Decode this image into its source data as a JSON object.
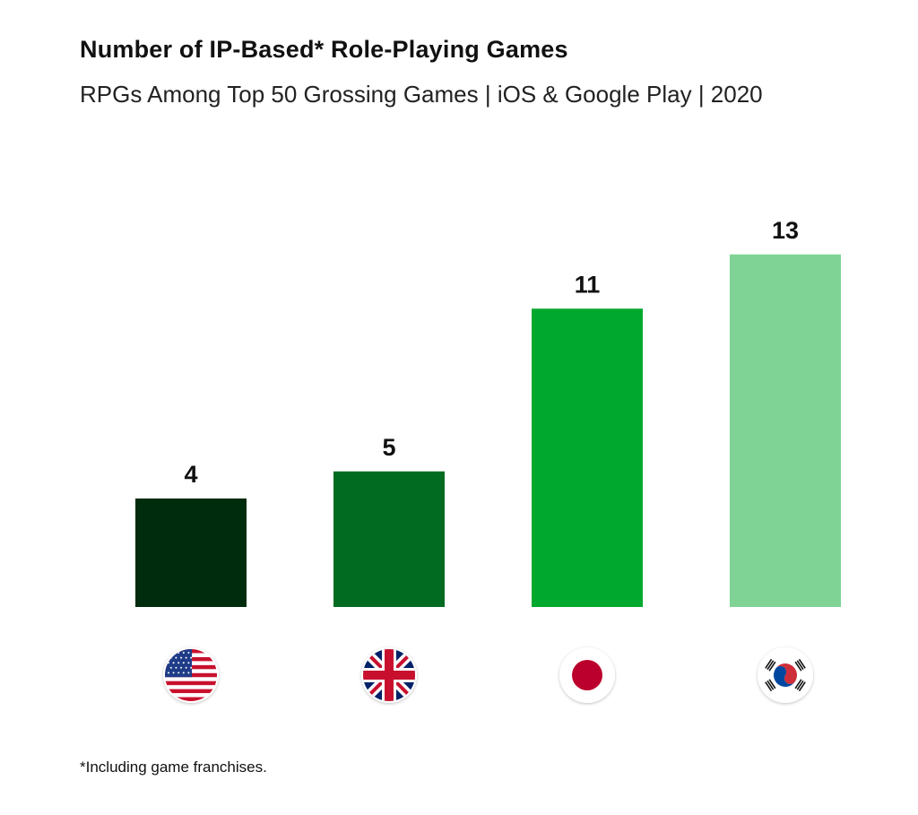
{
  "chart_data": {
    "type": "bar",
    "title": "Number of IP-Based* Role-Playing Games",
    "subtitle": "RPGs Among Top 50 Grossing Games | iOS & Google Play | 2020",
    "xlabel": "",
    "ylabel": "",
    "ylim": [
      0,
      13
    ],
    "grid": false,
    "legend": "none",
    "categories": [
      "United States",
      "United Kingdom",
      "Japan",
      "South Korea"
    ],
    "category_icons": [
      "us-flag-icon",
      "uk-flag-icon",
      "japan-flag-icon",
      "south-korea-flag-icon"
    ],
    "values": [
      4,
      5,
      11,
      13
    ],
    "colors": [
      "#002c0e",
      "#006b21",
      "#00a82d",
      "#7fd495"
    ]
  },
  "footnote": "*Including game franchises."
}
